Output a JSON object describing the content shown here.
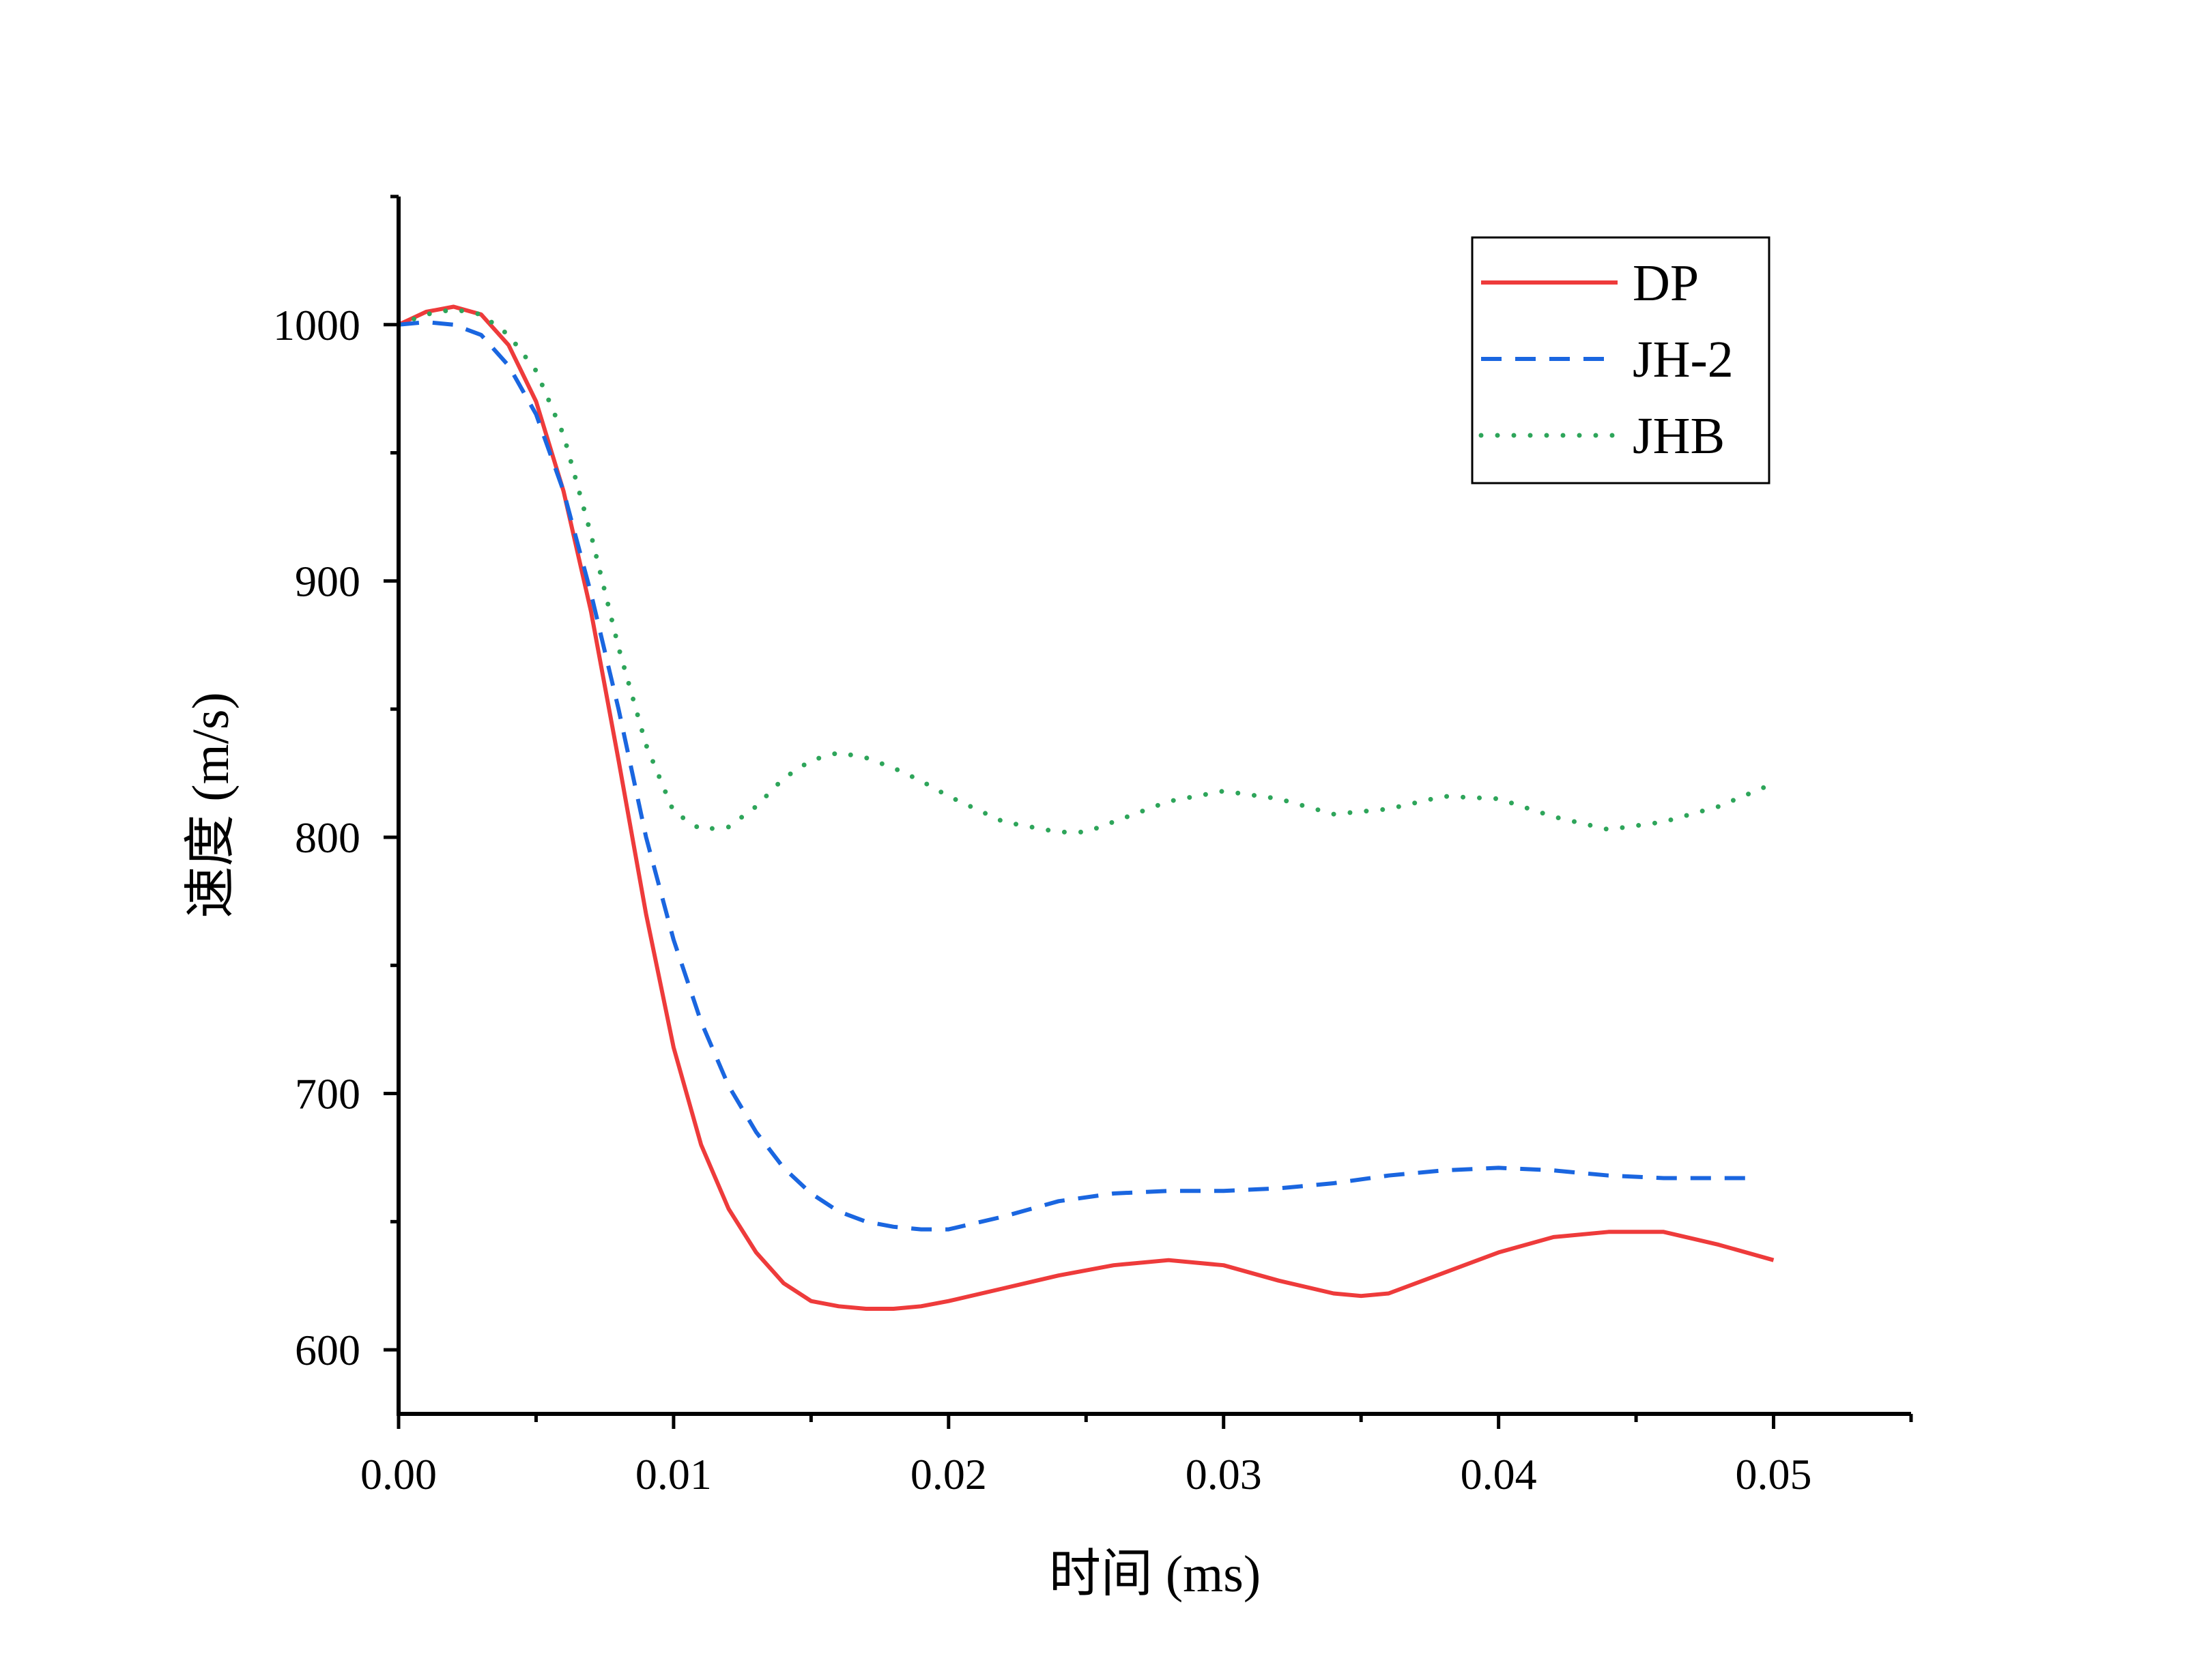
{
  "chart_data": {
    "type": "line",
    "title": "",
    "xlabel": "时间 (ms)",
    "ylabel": "速度 (m/s)",
    "xlim": [
      0,
      0.055
    ],
    "ylim": [
      575,
      1050
    ],
    "x_ticks": [
      0.0,
      0.01,
      0.02,
      0.03,
      0.04,
      0.05
    ],
    "x_tick_labels": [
      "0.00",
      "0.01",
      "0.02",
      "0.03",
      "0.04",
      "0.05"
    ],
    "x_minor_ticks": [
      0.005,
      0.015,
      0.025,
      0.035,
      0.045,
      0.055
    ],
    "y_ticks": [
      600,
      700,
      800,
      900,
      1000
    ],
    "y_tick_labels": [
      "600",
      "700",
      "800",
      "900",
      "1000"
    ],
    "y_minor_ticks": [
      650,
      750,
      850,
      950,
      1050
    ],
    "grid": false,
    "legend_position": "top-right",
    "series": [
      {
        "name": "DP",
        "color": "#ee3b3b",
        "style": "solid",
        "x": [
          0,
          0.001,
          0.002,
          0.003,
          0.004,
          0.005,
          0.006,
          0.007,
          0.008,
          0.009,
          0.01,
          0.011,
          0.012,
          0.013,
          0.014,
          0.015,
          0.016,
          0.017,
          0.018,
          0.019,
          0.02,
          0.022,
          0.024,
          0.026,
          0.028,
          0.03,
          0.032,
          0.034,
          0.035,
          0.036,
          0.038,
          0.04,
          0.042,
          0.044,
          0.046,
          0.048,
          0.05
        ],
        "values": [
          1000,
          1005,
          1007,
          1004,
          992,
          970,
          935,
          888,
          830,
          770,
          718,
          680,
          655,
          638,
          626,
          619,
          617,
          616,
          616,
          617,
          619,
          624,
          629,
          633,
          635,
          633,
          627,
          622,
          621,
          622,
          630,
          638,
          644,
          646,
          646,
          641,
          635
        ]
      },
      {
        "name": "JH-2",
        "color": "#1a66e0",
        "style": "dashed",
        "x": [
          0,
          0.001,
          0.002,
          0.003,
          0.004,
          0.005,
          0.006,
          0.007,
          0.008,
          0.009,
          0.01,
          0.011,
          0.012,
          0.013,
          0.014,
          0.015,
          0.016,
          0.017,
          0.018,
          0.019,
          0.02,
          0.022,
          0.024,
          0.026,
          0.028,
          0.03,
          0.032,
          0.034,
          0.036,
          0.038,
          0.04,
          0.042,
          0.044,
          0.046,
          0.048,
          0.049
        ],
        "values": [
          1000,
          1001,
          1000,
          996,
          984,
          965,
          935,
          895,
          850,
          800,
          760,
          728,
          703,
          685,
          671,
          661,
          654,
          650,
          648,
          647,
          647,
          652,
          658,
          661,
          662,
          662,
          663,
          665,
          668,
          670,
          671,
          670,
          668,
          667,
          667,
          667
        ]
      },
      {
        "name": "JHB",
        "color": "#2ea55a",
        "style": "dotted",
        "x": [
          0,
          0.001,
          0.002,
          0.003,
          0.004,
          0.005,
          0.006,
          0.007,
          0.008,
          0.009,
          0.01,
          0.011,
          0.012,
          0.013,
          0.014,
          0.015,
          0.016,
          0.017,
          0.018,
          0.019,
          0.02,
          0.022,
          0.024,
          0.025,
          0.026,
          0.028,
          0.03,
          0.032,
          0.034,
          0.036,
          0.038,
          0.04,
          0.042,
          0.044,
          0.046,
          0.048,
          0.05
        ],
        "values": [
          1000,
          1004,
          1006,
          1004,
          996,
          982,
          957,
          918,
          874,
          836,
          810,
          803,
          804,
          812,
          823,
          830,
          833,
          831,
          827,
          822,
          816,
          806,
          802,
          802,
          806,
          814,
          818,
          815,
          809,
          811,
          816,
          815,
          808,
          803,
          806,
          812,
          821
        ]
      }
    ]
  }
}
